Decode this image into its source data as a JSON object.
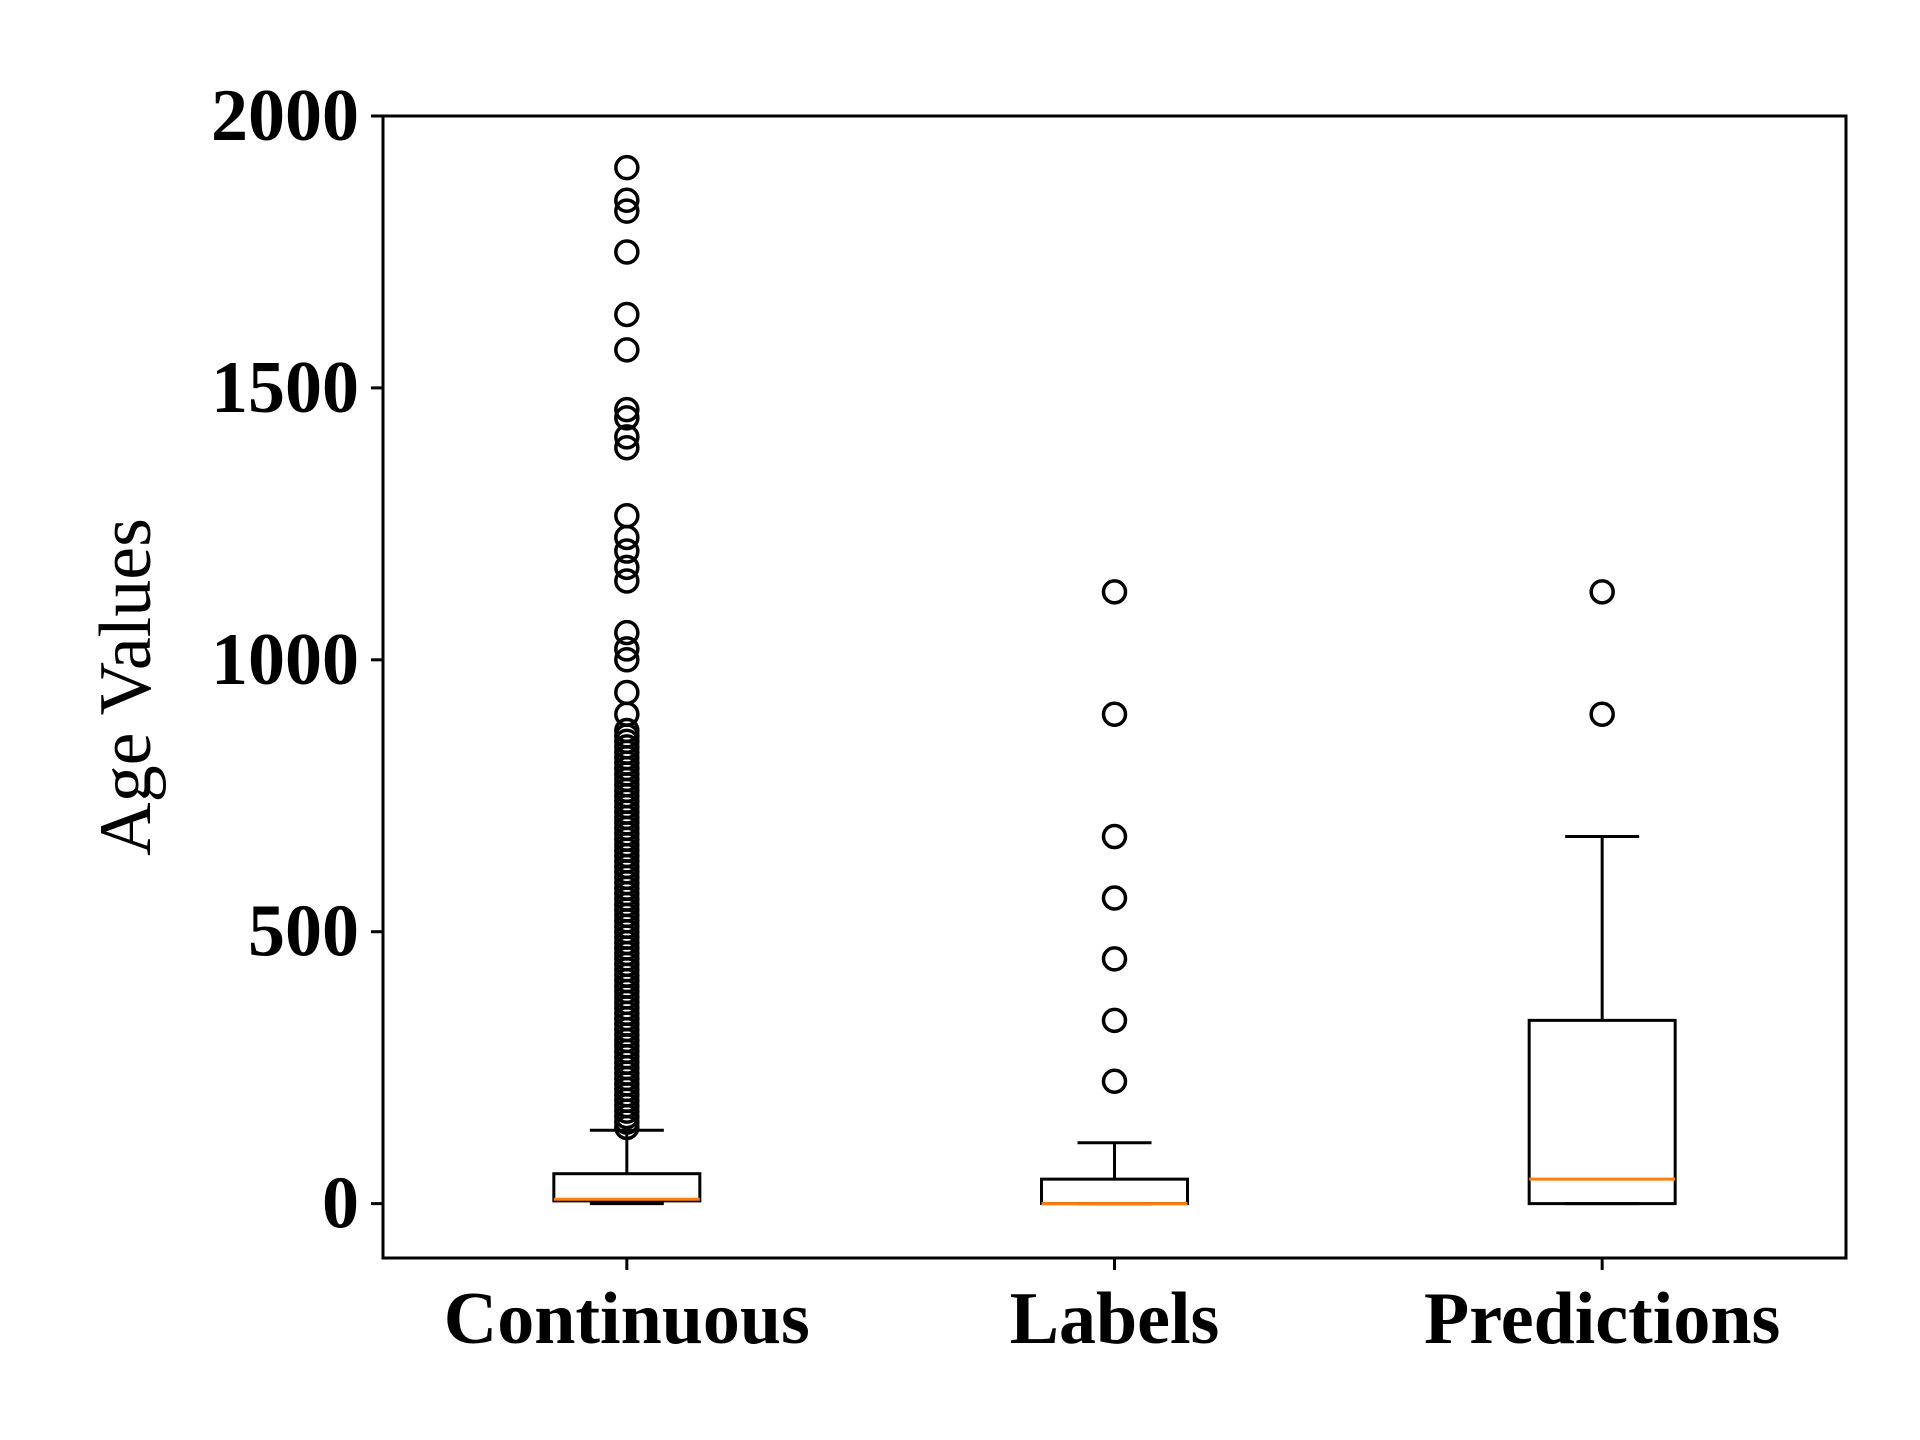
{
  "chart_data": {
    "type": "box",
    "title": "",
    "xlabel": "",
    "ylabel": "Age Values",
    "ylim": [
      -100,
      2000
    ],
    "yticks": [
      0,
      500,
      1000,
      1500,
      2000
    ],
    "grid": false,
    "categories": [
      "Continuous",
      "Labels",
      "Predictions"
    ],
    "colors": {
      "box": "#000000",
      "median": "#ff7f0e",
      "background": "#ffffff"
    },
    "boxes": [
      {
        "name": "Continuous",
        "whisker_low": 0,
        "q1": 5,
        "median": 8,
        "q3": 55,
        "whisker_high": 135,
        "outliers": [
          1905,
          1845,
          1825,
          1750,
          1635,
          1570,
          1460,
          1445,
          1410,
          1390,
          1265,
          1225,
          1200,
          1170,
          1145,
          1050,
          1020,
          1000,
          940,
          900,
          870,
          860,
          850,
          840,
          830,
          820,
          810,
          800,
          790,
          780,
          770,
          760,
          750,
          740,
          730,
          720,
          710,
          700,
          690,
          680,
          670,
          660,
          650,
          640,
          630,
          620,
          610,
          600,
          590,
          580,
          570,
          560,
          550,
          540,
          530,
          520,
          510,
          500,
          490,
          480,
          470,
          460,
          450,
          440,
          430,
          420,
          410,
          400,
          390,
          380,
          370,
          360,
          350,
          340,
          330,
          320,
          310,
          300,
          290,
          280,
          270,
          260,
          250,
          240,
          230,
          220,
          210,
          200,
          190,
          180,
          170,
          160,
          150,
          140
        ]
      },
      {
        "name": "Labels",
        "whisker_low": 0,
        "q1": 0,
        "median": 0,
        "q3": 45,
        "whisker_high": 112,
        "outliers": [
          1125,
          900,
          675,
          562,
          450,
          337,
          225
        ]
      },
      {
        "name": "Predictions",
        "whisker_low": 0,
        "q1": 0,
        "median": 45,
        "q3": 337,
        "whisker_high": 675,
        "outliers": [
          1125,
          900
        ]
      }
    ]
  }
}
